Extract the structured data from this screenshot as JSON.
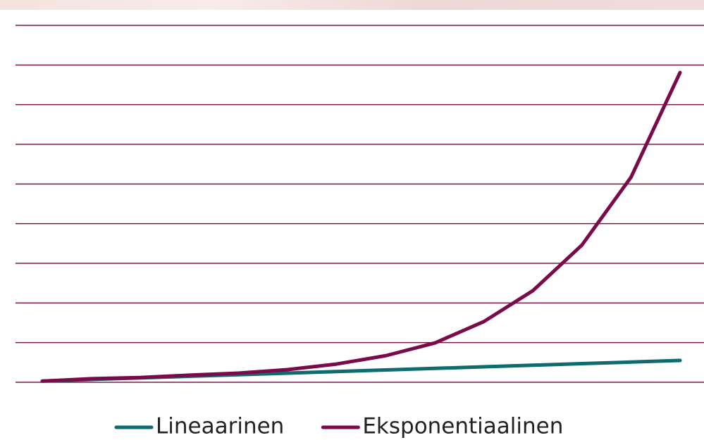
{
  "chart_data": {
    "type": "line",
    "categories": [
      null,
      null,
      null,
      null,
      null,
      null,
      null,
      null,
      null,
      null,
      null,
      null,
      null,
      null
    ],
    "series": [
      {
        "name": "Lineaarinen",
        "color": "#0e6b6f",
        "values": [
          0.03,
          0.07,
          0.11,
          0.15,
          0.19,
          0.23,
          0.27,
          0.31,
          0.35,
          0.39,
          0.43,
          0.47,
          0.51,
          0.55
        ]
      },
      {
        "name": "Eksponentiaalinen",
        "color": "#7a0a4a",
        "values": [
          0.03,
          0.09,
          0.12,
          0.18,
          0.23,
          0.32,
          0.46,
          0.67,
          0.99,
          1.53,
          2.31,
          3.46,
          5.17,
          7.81
        ]
      }
    ],
    "ylim": [
      0,
      9
    ],
    "yticks": [
      0,
      1,
      2,
      3,
      4,
      5,
      6,
      7,
      8,
      9
    ],
    "grid": true,
    "grid_color": "#7a1a4a",
    "legend": "bottom"
  }
}
